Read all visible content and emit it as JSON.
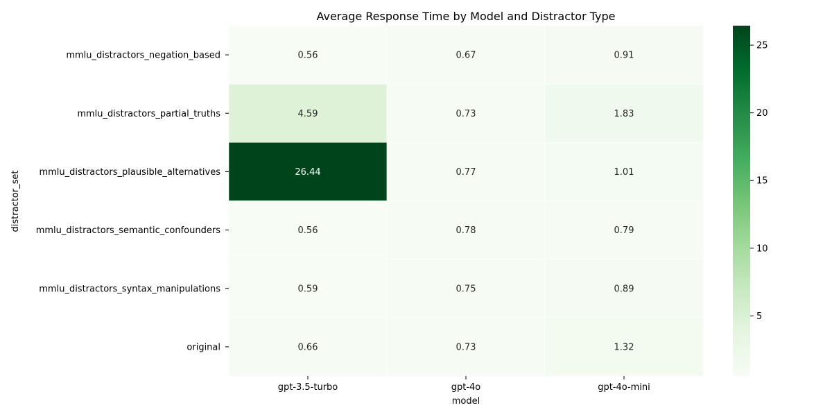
{
  "chart_data": {
    "type": "heatmap",
    "title": "Average Response Time by Model and Distractor Type",
    "xlabel": "model",
    "ylabel": "distractor_set",
    "x_categories": [
      "gpt-3.5-turbo",
      "gpt-4o",
      "gpt-4o-mini"
    ],
    "y_categories": [
      "mmlu_distractors_negation_based",
      "mmlu_distractors_partial_truths",
      "mmlu_distractors_plausible_alternatives",
      "mmlu_distractors_semantic_confounders",
      "mmlu_distractors_syntax_manipulations",
      "original"
    ],
    "values": [
      [
        0.56,
        0.67,
        0.91
      ],
      [
        4.59,
        0.73,
        1.83
      ],
      [
        26.44,
        0.77,
        1.01
      ],
      [
        0.56,
        0.78,
        0.79
      ],
      [
        0.59,
        0.75,
        0.89
      ],
      [
        0.66,
        0.73,
        1.32
      ]
    ],
    "value_labels": [
      [
        "0.56",
        "0.67",
        "0.91"
      ],
      [
        "4.59",
        "0.73",
        "1.83"
      ],
      [
        "26.44",
        "0.77",
        "1.01"
      ],
      [
        "0.56",
        "0.78",
        "0.79"
      ],
      [
        "0.59",
        "0.75",
        "0.89"
      ],
      [
        "0.66",
        "0.73",
        "1.32"
      ]
    ],
    "colormap": "Greens",
    "colormap_stops": [
      "#f7fcf5",
      "#e5f5e0",
      "#c7e9c0",
      "#a1d99b",
      "#74c476",
      "#41ab5d",
      "#238b45",
      "#006d2c",
      "#00441b"
    ],
    "color_range": [
      0.56,
      26.44
    ],
    "colorbar_ticks": [
      5,
      10,
      15,
      20,
      25
    ],
    "colorbar_tick_labels": [
      "5",
      "10",
      "15",
      "20",
      "25"
    ],
    "annotation_color_light": "#ffffff",
    "annotation_color_dark": "#262626"
  }
}
